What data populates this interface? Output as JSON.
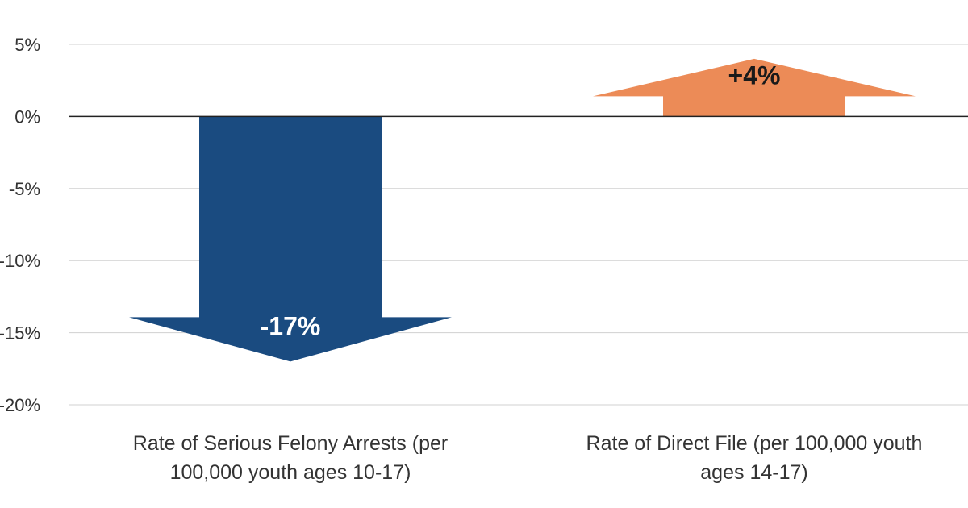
{
  "chart_data": {
    "type": "bar",
    "categories": [
      "Rate of Serious Felony Arrests (per 100,000 youth ages 10-17)",
      "Rate of Direct File (per 100,000 youth ages 14-17)"
    ],
    "category_lines": [
      [
        "Rate of Serious Felony Arrests (per",
        "100,000 youth ages 10-17)"
      ],
      [
        "Rate of Direct File (per 100,000 youth",
        "ages 14-17)"
      ]
    ],
    "values": [
      -17,
      4
    ],
    "data_labels": [
      "-17%",
      "+4%"
    ],
    "yticks": [
      5,
      0,
      -5,
      -10,
      -15,
      -20
    ],
    "ytick_labels": [
      "5%",
      "0%",
      "-5%",
      "-10%",
      "-15%",
      "-20%"
    ],
    "ylim": [
      -20,
      5
    ],
    "grid": true,
    "title": "",
    "xlabel": "",
    "ylabel": "",
    "colors": {
      "negative": "#1a4b80",
      "positive": "#ec8b57",
      "negative_label": "#ffffff",
      "positive_label": "#1a1a1a",
      "grid": "#d0d0d0",
      "zero_line": "#222222"
    }
  }
}
